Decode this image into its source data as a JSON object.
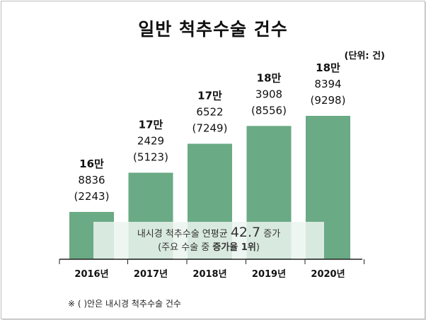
{
  "title": "일반 척추수술 건수",
  "unit_label": "(단위: 건)",
  "chart_data": {
    "type": "bar",
    "title": "일반 척추수술 건수",
    "categories": [
      "2016년",
      "2017년",
      "2018년",
      "2019년",
      "2020년"
    ],
    "values": [
      168836,
      172429,
      176522,
      183908,
      188394
    ],
    "secondary_values": [
      2243,
      5123,
      7249,
      8556,
      9298
    ],
    "labels_top": [
      "16만",
      "17만",
      "17만",
      "18만",
      "18만"
    ],
    "labels_mid": [
      "8836",
      "2429",
      "6522",
      "3908",
      "8394"
    ],
    "labels_sub": [
      "(2243)",
      "(5123)",
      "(7249)",
      "(8556)",
      "(9298)"
    ],
    "bar_color": "#6aaa84",
    "grid": false
  },
  "note": {
    "prefix": "내시경 척추수술 연평균 ",
    "rate": "42.7",
    "suffix": " 증가",
    "line2_prefix": "(주요 수술 중 ",
    "line2_bold": "증가율 1위",
    "line2_suffix": ")"
  },
  "footnote": "※ ( )안은 내시경 척추수술 건수"
}
